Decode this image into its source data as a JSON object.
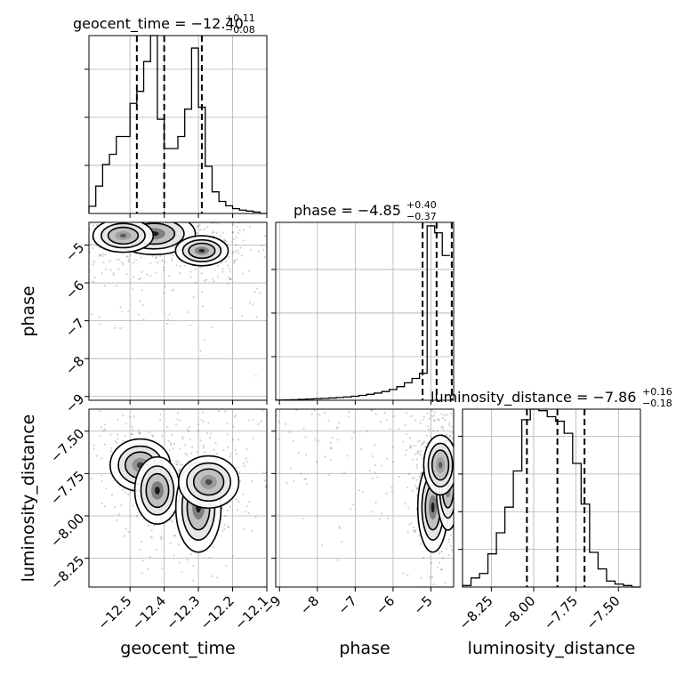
{
  "figure": {
    "geocent_title_main": "geocent_time = −12.40",
    "geocent_title_sup": "+0.11",
    "geocent_title_sub": "−0.08",
    "phase_title_main": "phase = −4.85",
    "phase_title_sup": "+0.40",
    "phase_title_sub": "−0.37",
    "lumdist_title_main": "luminosity_distance = −7.86",
    "lumdist_title_sup": "+0.16",
    "lumdist_title_sub": "−0.18",
    "xlabel_geocent": "geocent_time",
    "xlabel_phase": "phase",
    "xlabel_lumdist": "luminosity_distance",
    "ylabel_phase": "phase",
    "ylabel_lumdist": "luminosity_distance"
  },
  "chart_data": {
    "type": "corner",
    "parameters": [
      "geocent_time",
      "phase",
      "luminosity_distance"
    ],
    "ranges": {
      "geocent_time": [
        -12.62,
        -12.1
      ],
      "phase": [
        -9.1,
        -4.4
      ],
      "luminosity_distance": [
        -8.42,
        -7.37
      ]
    },
    "ticks": {
      "geocent_time": [
        -12.5,
        -12.4,
        -12.3,
        -12.2,
        -12.1
      ],
      "phase": [
        -9,
        -8,
        -7,
        -6,
        -5
      ],
      "luminosity_distance": [
        -8.25,
        -8.0,
        -7.75,
        -7.5
      ]
    },
    "tick_labels": {
      "geocent_time": [
        "−12.5",
        "−12.4",
        "−12.3",
        "−12.2",
        "−12.1"
      ],
      "phase": [
        "−9",
        "−8",
        "−7",
        "−6",
        "−5"
      ],
      "luminosity_distance": [
        "−8.25",
        "−8.00",
        "−7.75",
        "−7.50"
      ]
    },
    "quantiles": {
      "geocent_time": [
        -12.48,
        -12.4,
        -12.29
      ],
      "phase": [
        -5.22,
        -4.85,
        -4.45
      ],
      "luminosity_distance": [
        -8.04,
        -7.86,
        -7.7
      ]
    },
    "histograms": {
      "geocent_time": {
        "edges": [
          -12.62,
          -12.6,
          -12.58,
          -12.56,
          -12.54,
          -12.52,
          -12.5,
          -12.48,
          -12.46,
          -12.44,
          -12.42,
          -12.4,
          -12.38,
          -12.36,
          -12.34,
          -12.32,
          -12.3,
          -12.28,
          -12.26,
          -12.24,
          -12.22,
          -12.2,
          -12.18,
          -12.16,
          -12.14,
          -12.12,
          -12.1
        ],
        "counts": [
          0.15,
          0.57,
          1.02,
          1.23,
          1.6,
          1.6,
          2.29,
          2.54,
          3.16,
          3.73,
          1.96,
          1.35,
          1.35,
          1.6,
          2.17,
          3.44,
          2.21,
          0.98,
          0.45,
          0.25,
          0.16,
          0.1,
          0.07,
          0.05,
          0.03,
          0.0
        ],
        "ylim": [
          0,
          3.7
        ],
        "yticks": [
          1,
          2,
          3
        ]
      },
      "phase": {
        "edges": [
          -9.1,
          -8.9,
          -8.7,
          -8.5,
          -8.3,
          -8.1,
          -7.9,
          -7.7,
          -7.5,
          -7.3,
          -7.1,
          -6.9,
          -6.7,
          -6.5,
          -6.3,
          -6.1,
          -5.9,
          -5.7,
          -5.5,
          -5.3,
          -5.1,
          -4.9,
          -4.7,
          -4.5
        ],
        "counts": [
          0.01,
          0.02,
          0.03,
          0.05,
          0.07,
          0.09,
          0.11,
          0.13,
          0.16,
          0.19,
          0.23,
          0.28,
          0.34,
          0.41,
          0.5,
          0.62,
          0.78,
          1.0,
          1.25,
          1.55,
          10.0,
          9.6,
          8.3
        ],
        "ylim": [
          0,
          10.2
        ],
        "yticks": [
          2.5,
          5,
          7.5
        ]
      },
      "luminosity_distance": {
        "edges": [
          -8.42,
          -8.37,
          -8.32,
          -8.27,
          -8.22,
          -8.17,
          -8.12,
          -8.07,
          -8.02,
          -7.97,
          -7.92,
          -7.87,
          -7.82,
          -7.77,
          -7.72,
          -7.67,
          -7.62,
          -7.57,
          -7.52,
          -7.47,
          -7.42,
          -7.37
        ],
        "counts": [
          0.01,
          0.06,
          0.09,
          0.22,
          0.36,
          0.53,
          0.77,
          1.11,
          1.26,
          1.17,
          1.13,
          1.1,
          1.02,
          0.82,
          0.55,
          0.23,
          0.12,
          0.04,
          0.02,
          0.01,
          0.0
        ],
        "ylim": [
          0,
          1.18
        ],
        "yticks": [
          0.25,
          0.5,
          0.75,
          1.0
        ]
      }
    },
    "density_modes": {
      "geocent_time_vs_phase": [
        {
          "x": -12.43,
          "y": -4.7,
          "sx": 0.055,
          "sy": 0.25,
          "w": 1.0
        },
        {
          "x": -12.52,
          "y": -4.75,
          "sx": 0.04,
          "sy": 0.2,
          "w": 0.5
        },
        {
          "x": -12.29,
          "y": -5.15,
          "sx": 0.035,
          "sy": 0.18,
          "w": 0.9
        }
      ],
      "geocent_time_vs_luminosity_distance": [
        {
          "x": -12.47,
          "y": -7.7,
          "sx": 0.04,
          "sy": 0.07,
          "w": 0.7
        },
        {
          "x": -12.42,
          "y": -7.85,
          "sx": 0.03,
          "sy": 0.09,
          "w": 1.0
        },
        {
          "x": -12.3,
          "y": -7.95,
          "sx": 0.03,
          "sy": 0.12,
          "w": 1.0
        },
        {
          "x": -12.27,
          "y": -7.8,
          "sx": 0.04,
          "sy": 0.07,
          "w": 0.6
        }
      ],
      "phase_vs_luminosity_distance": [
        {
          "x": -4.95,
          "y": -7.95,
          "sx": 0.18,
          "sy": 0.12,
          "w": 1.0
        },
        {
          "x": -4.55,
          "y": -7.82,
          "sx": 0.14,
          "sy": 0.12,
          "w": 1.0
        },
        {
          "x": -4.75,
          "y": -7.7,
          "sx": 0.2,
          "sy": 0.08,
          "w": 0.5
        }
      ]
    }
  }
}
